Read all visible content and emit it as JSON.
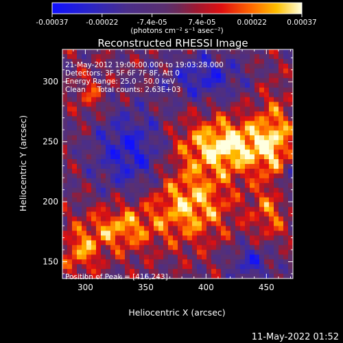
{
  "chart_data": {
    "type": "heatmap",
    "title": "Reconstructed RHESSI Image",
    "xlabel": "Heliocentric X (arcsec)",
    "ylabel": "Heliocentric Y (arcsec)",
    "xlim": [
      281,
      472
    ],
    "ylim": [
      136,
      327
    ],
    "x_ticks": [
      300,
      350,
      400,
      450
    ],
    "y_ticks": [
      150,
      200,
      250,
      300
    ],
    "colorbar": {
      "ticks": [
        "-0.00037",
        "-0.00022",
        "-7.4e-05",
        "7.4e-05",
        "0.00022",
        "0.00037"
      ],
      "unit_label": "(photons cm⁻² s⁻¹ asec⁻²)",
      "range": [
        -0.00037,
        0.00037
      ]
    },
    "annotations": [
      "21-May-2012 19:00:00.000 to 19:03:28.000",
      "Detectors: 3F 5F 6F 7F 8F, Att 0",
      "Energy Range: 25.0 - 50.0 keV",
      "Clean     Total counts: 2.63E+03"
    ],
    "peak_label": "Position of Peak = [416,243]",
    "peak": [
      416,
      243
    ],
    "grid": false
  },
  "footer_timestamp": "11-May-2022 01:52"
}
